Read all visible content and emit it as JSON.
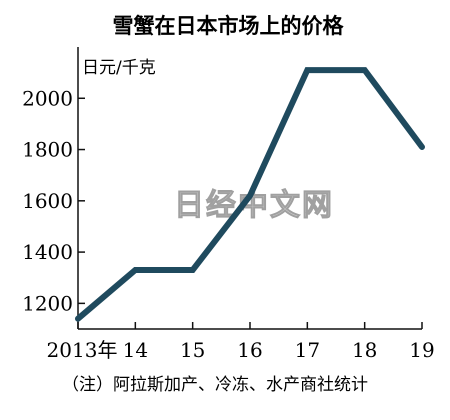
{
  "chart_data": {
    "type": "line",
    "title": "雪蟹在日本市场上的价格",
    "unit_label": "日元/千克",
    "x": [
      "2013年",
      "14",
      "15",
      "16",
      "17",
      "18",
      "19"
    ],
    "values": [
      1140,
      1330,
      1330,
      1620,
      2110,
      2110,
      1810
    ],
    "ylim": [
      1100,
      2200
    ],
    "yticks": [
      1200,
      1400,
      1600,
      1800,
      2000
    ],
    "y_tick_labels": [
      "1200",
      "1400",
      "1600",
      "1800",
      "2000"
    ],
    "grid": false,
    "line_color": "#1f4a5e",
    "source_note": "（注）阿拉斯加产、冷冻、水产商社统计",
    "watermark": "日经中文网"
  }
}
